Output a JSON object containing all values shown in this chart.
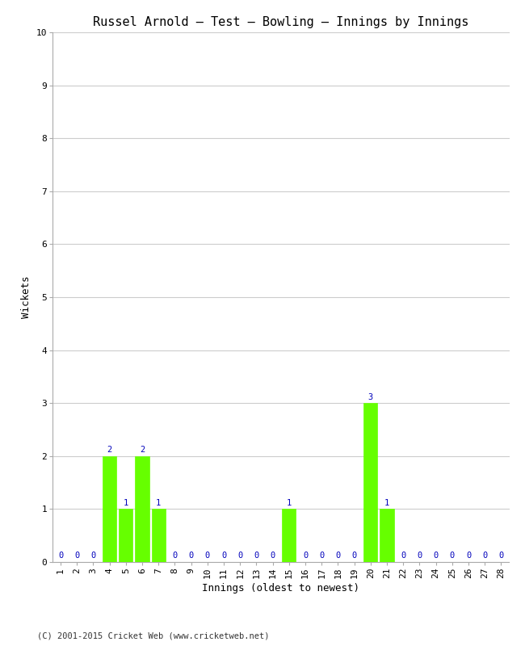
{
  "title": "Russel Arnold – Test – Bowling – Innings by Innings",
  "xlabel": "Innings (oldest to newest)",
  "ylabel": "Wickets",
  "footnote": "(C) 2001-2015 Cricket Web (www.cricketweb.net)",
  "innings": [
    1,
    2,
    3,
    4,
    5,
    6,
    7,
    8,
    9,
    10,
    11,
    12,
    13,
    14,
    15,
    16,
    17,
    18,
    19,
    20,
    21,
    22,
    23,
    24,
    25,
    26,
    27,
    28
  ],
  "wickets": [
    0,
    0,
    0,
    2,
    1,
    2,
    1,
    0,
    0,
    0,
    0,
    0,
    0,
    0,
    1,
    0,
    0,
    0,
    0,
    3,
    1,
    0,
    0,
    0,
    0,
    0,
    0,
    0
  ],
  "bar_color": "#66ff00",
  "zero_color": "#0000bb",
  "nonzero_label_color": "#0000bb",
  "background_color": "#ffffff",
  "grid_color": "#cccccc",
  "ylim": [
    0,
    10
  ],
  "yticks": [
    0,
    1,
    2,
    3,
    4,
    5,
    6,
    7,
    8,
    9,
    10
  ],
  "title_fontsize": 11,
  "axis_label_fontsize": 9,
  "tick_fontsize": 8,
  "annotation_fontsize": 7.5,
  "footnote_fontsize": 7.5
}
